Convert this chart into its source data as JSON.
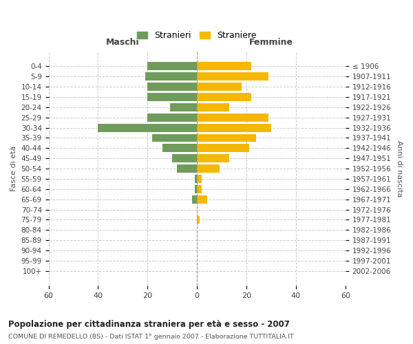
{
  "age_groups": [
    "0-4",
    "5-9",
    "10-14",
    "15-19",
    "20-24",
    "25-29",
    "30-34",
    "35-39",
    "40-44",
    "45-49",
    "50-54",
    "55-59",
    "60-64",
    "65-69",
    "70-74",
    "75-79",
    "80-84",
    "85-89",
    "90-94",
    "95-99",
    "100+"
  ],
  "birth_years": [
    "2002-2006",
    "1997-2001",
    "1992-1996",
    "1987-1991",
    "1982-1986",
    "1977-1981",
    "1972-1976",
    "1967-1971",
    "1962-1966",
    "1957-1961",
    "1952-1956",
    "1947-1951",
    "1942-1946",
    "1937-1941",
    "1932-1936",
    "1927-1931",
    "1922-1926",
    "1917-1921",
    "1912-1916",
    "1907-1911",
    "≤ 1906"
  ],
  "males": [
    20,
    21,
    20,
    20,
    11,
    20,
    40,
    18,
    14,
    10,
    8,
    1,
    1,
    2,
    0,
    0,
    0,
    0,
    0,
    0,
    0
  ],
  "females": [
    22,
    29,
    18,
    22,
    13,
    29,
    30,
    24,
    21,
    13,
    9,
    2,
    2,
    4,
    0,
    1,
    0,
    0,
    0,
    0,
    0
  ],
  "male_color": "#6f9c5a",
  "female_color": "#f5b800",
  "background_color": "#ffffff",
  "grid_color": "#cccccc",
  "title": "Popolazione per cittadinanza straniera per età e sesso - 2007",
  "subtitle": "COMUNE DI REMEDELLO (BS) - Dati ISTAT 1° gennaio 2007 - Elaborazione TUTTITALIA.IT",
  "xlabel_left": "Maschi",
  "xlabel_right": "Femmine",
  "ylabel_left": "Fasce di età",
  "ylabel_right": "Anni di nascita",
  "legend_male": "Stranieri",
  "legend_female": "Straniere",
  "xlim": 60,
  "bar_height": 0.8
}
